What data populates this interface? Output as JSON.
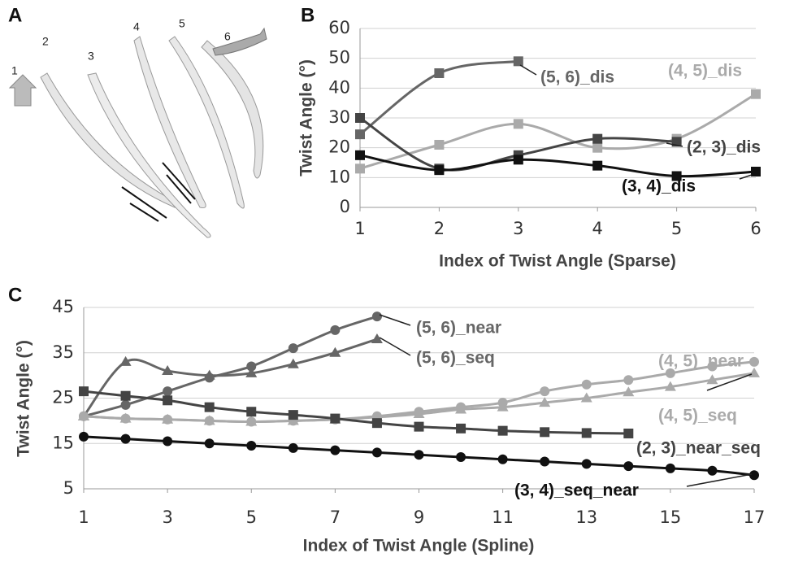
{
  "panel_a": {
    "letter": "A",
    "labels": [
      "1",
      "2",
      "3",
      "4",
      "5",
      "6"
    ]
  },
  "chart_data": [
    {
      "type": "line",
      "label": "B",
      "y_label": "Twist Angle (°)",
      "x_label": "Index of Twist Angle (Sparse)",
      "x": [
        1,
        2,
        3,
        4,
        5,
        6
      ],
      "xlim": [
        1,
        6
      ],
      "xticks": [
        1,
        2,
        3,
        4,
        5,
        6
      ],
      "ylim": [
        0,
        60
      ],
      "yticks": [
        0,
        10,
        20,
        30,
        40,
        50,
        60
      ],
      "grid": true,
      "smooth": true,
      "series": [
        {
          "name": "(5, 6)_dis",
          "color": "#666666",
          "marker": "square",
          "values": [
            24.5,
            45,
            49,
            null,
            null,
            null
          ]
        },
        {
          "name": "(4, 5)_dis",
          "color": "#aaaaaa",
          "marker": "square",
          "values": [
            13,
            21,
            28,
            20,
            23,
            38
          ]
        },
        {
          "name": "(2, 3)_dis",
          "color": "#444444",
          "marker": "square",
          "values": [
            30,
            13,
            17.5,
            23,
            22,
            null
          ]
        },
        {
          "name": "(3, 4)_dis",
          "color": "#111111",
          "marker": "square",
          "values": [
            17.5,
            12.5,
            16,
            14,
            10.5,
            12
          ]
        }
      ]
    },
    {
      "type": "line",
      "label": "C",
      "y_label": "Twist Angle (°)",
      "x_label": "Index of Twist Angle (Spline)",
      "x": [
        1,
        2,
        3,
        4,
        5,
        6,
        7,
        8,
        9,
        10,
        11,
        12,
        13,
        14,
        15,
        16,
        17
      ],
      "xlim": [
        1,
        17
      ],
      "xticks": [
        1,
        3,
        5,
        7,
        9,
        11,
        13,
        15,
        17
      ],
      "ylim": [
        5,
        45
      ],
      "yticks": [
        5,
        15,
        25,
        35,
        45
      ],
      "grid": true,
      "smooth": true,
      "series": [
        {
          "name": "(5, 6)_near",
          "color": "#666666",
          "marker": "circle",
          "values": [
            21,
            23.5,
            26.5,
            29.5,
            32,
            36,
            40,
            43,
            null,
            null,
            null,
            null,
            null,
            null,
            null,
            null,
            null
          ]
        },
        {
          "name": "(5, 6)_seq",
          "color": "#666666",
          "marker": "triangle",
          "values": [
            21,
            33,
            31,
            30,
            30.5,
            32.5,
            35,
            38,
            null,
            null,
            null,
            null,
            null,
            null,
            null,
            null,
            null
          ]
        },
        {
          "name": "(4, 5)_near",
          "color": "#aaaaaa",
          "marker": "circle",
          "values": [
            21,
            20.5,
            20.3,
            20,
            19.8,
            20,
            20.3,
            21,
            22,
            23,
            24,
            26.5,
            28,
            29,
            30.5,
            32,
            33
          ]
        },
        {
          "name": "(4, 5)_seq",
          "color": "#aaaaaa",
          "marker": "triangle",
          "values": [
            21,
            20.5,
            20.3,
            20,
            19.8,
            20,
            20.3,
            20.8,
            21.5,
            22.5,
            23,
            24,
            25,
            26.3,
            27.5,
            29,
            30.5
          ]
        },
        {
          "name": "(2, 3)_near_seq",
          "color": "#444444",
          "marker": "square",
          "values": [
            26.5,
            25.5,
            24.5,
            23,
            22,
            21.3,
            20.5,
            19.5,
            18.7,
            18.3,
            17.8,
            17.5,
            17.3,
            17.2,
            null,
            null,
            null
          ]
        },
        {
          "name": "(3, 4)_seq_near",
          "color": "#111111",
          "marker": "circle",
          "values": [
            16.5,
            16,
            15.5,
            15,
            14.5,
            14,
            13.5,
            13,
            12.5,
            12,
            11.5,
            11,
            10.5,
            10,
            9.5,
            9,
            8
          ]
        }
      ]
    }
  ]
}
